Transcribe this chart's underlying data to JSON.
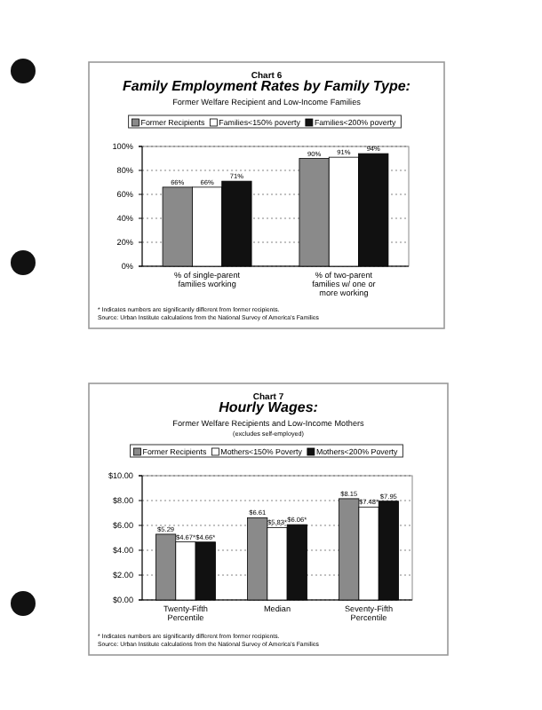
{
  "chart_data": [
    {
      "type": "bar",
      "title": "Chart 6\nFamily Employment Rates by Family Type:",
      "subtitle": "Former Welfare Recipient and Low-Income Families",
      "categories": [
        "% of single-parent families working",
        "% of two-parent families w/ one or more working"
      ],
      "series": [
        {
          "name": "Former Recipients",
          "color": "#8a8a8a",
          "values": [
            66,
            90
          ],
          "value_labels": [
            "66%",
            "90%"
          ]
        },
        {
          "name": "Families<150% poverty",
          "color": "#ffffff",
          "values": [
            66,
            91
          ],
          "value_labels": [
            "66%",
            "91%"
          ]
        },
        {
          "name": "Families<200% poverty",
          "color": "#111111",
          "values": [
            71,
            94
          ],
          "value_labels": [
            "71%",
            "94%"
          ]
        }
      ],
      "ylim": [
        0,
        100
      ],
      "yticks": [
        {
          "value": 0,
          "label": "0%"
        },
        {
          "value": 20,
          "label": "20%"
        },
        {
          "value": 40,
          "label": "40%"
        },
        {
          "value": 60,
          "label": "60%"
        },
        {
          "value": 80,
          "label": "80%"
        },
        {
          "value": 100,
          "label": "100%"
        }
      ],
      "grid": "y",
      "legend": "top",
      "annotations": [
        "* Indicates numbers are significantly different from former recipients.",
        "Source: Urban Institute calculations from the National Survey of America's Families"
      ]
    },
    {
      "type": "bar",
      "title": "Chart 7\nHourly Wages:",
      "subtitle": "Former Welfare Recipients and Low-Income Mothers\n(excludes self-employed)",
      "categories": [
        "Twenty-Fifth Percentile",
        "Median",
        "Seventy-Fifth Percentile"
      ],
      "series": [
        {
          "name": "Former Recipients",
          "color": "#8a8a8a",
          "values": [
            5.29,
            6.61,
            8.15
          ],
          "value_labels": [
            "$5.29",
            "$6.61",
            "$8.15"
          ]
        },
        {
          "name": "Mothers<150% Poverty",
          "color": "#ffffff",
          "values": [
            4.67,
            5.83,
            7.48
          ],
          "value_labels": [
            "$4.67*",
            "$5.83*",
            "$7.48*"
          ]
        },
        {
          "name": "Mothers<200% Poverty",
          "color": "#111111",
          "values": [
            4.66,
            6.06,
            7.95
          ],
          "value_labels": [
            "$4.66*",
            "$6.06*",
            "$7.95"
          ]
        }
      ],
      "ylim": [
        0,
        10
      ],
      "yticks": [
        {
          "value": 0,
          "label": "$0.00"
        },
        {
          "value": 2,
          "label": "$2.00"
        },
        {
          "value": 4,
          "label": "$4.00"
        },
        {
          "value": 6,
          "label": "$6.00"
        },
        {
          "value": 8,
          "label": "$8.00"
        },
        {
          "value": 10,
          "label": "$10.00"
        }
      ],
      "grid": "y",
      "legend": "top",
      "annotations": [
        "* Indicates numbers are significantly different from former recipients.",
        "Source: Urban Institute calculations from the National Survey of America's Families"
      ]
    }
  ]
}
